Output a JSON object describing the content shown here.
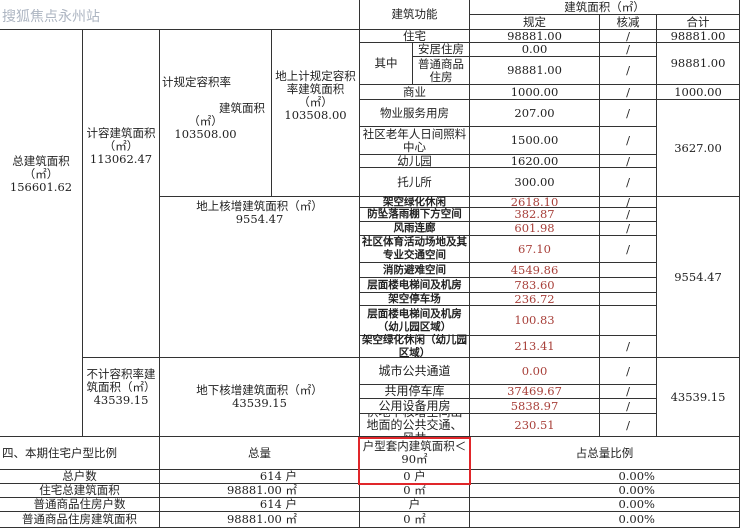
{
  "watermark": "搜狐焦点永州站",
  "header": {
    "function": "建筑功能",
    "area": "建筑面积（㎡）",
    "specified": "规定",
    "deduction": "核减",
    "total": "合计"
  },
  "left": {
    "total_area_label": "总建筑面积",
    "unit": "（㎡）",
    "total_area": "156601.62",
    "far_area_label": "计容建筑面积",
    "far_area": "113062.47",
    "spec_far_label": "计规定容积率",
    "spec_far_label2": "建筑面积",
    "spec_far": "103508.00",
    "above_spec_label": "地上计规定容积率建筑面积",
    "above_spec": "103508.00",
    "above_add_label": "地上核增建筑面积（㎡）",
    "above_add": "9554.47",
    "nonfar_label": "不计容积率建筑面积（㎡）",
    "nonfar": "43539.15",
    "under_add_label": "地下核增建筑面积（㎡）",
    "under_add": "43539.15"
  },
  "rows": {
    "residential": {
      "label": "住宅",
      "specified": "98881.00",
      "deduction": "/",
      "total": "98881.00"
    },
    "among": "其中",
    "affordable": {
      "label": "安居住房",
      "specified": "0.00",
      "deduction": "/"
    },
    "commodity": {
      "label": "普通商品住房",
      "specified": "98881.00",
      "deduction": "/"
    },
    "among_total": "98881.00",
    "commercial": {
      "label": "商业",
      "specified": "1000.00",
      "deduction": "/",
      "total": "1000.00"
    },
    "property": {
      "label": "物业服务用房",
      "specified": "207.00",
      "deduction": "/"
    },
    "elderly": {
      "label": "社区老年人日间照料中心",
      "specified": "1500.00",
      "deduction": "/"
    },
    "kindergarten": {
      "label": "幼儿园",
      "specified": "1620.00",
      "deduction": "/"
    },
    "nursery": {
      "label": "托儿所",
      "specified": "300.00",
      "deduction": "/"
    },
    "public_total": "3627.00"
  },
  "above_added": [
    {
      "label": "架空绿化休闲",
      "specified": "2618.10",
      "deduction": "/"
    },
    {
      "label": "防坠落雨棚下方空间",
      "specified": "382.87",
      "deduction": "/"
    },
    {
      "label": "风雨连廊",
      "specified": "601.98",
      "deduction": "/"
    },
    {
      "label": "社区体育活动场地及其专业交通空间",
      "specified": "67.10",
      "deduction": "/"
    },
    {
      "label": "消防避难空间",
      "specified": "4549.86",
      "deduction": ""
    },
    {
      "label": "层面楼电梯间及机房",
      "specified": "783.60",
      "deduction": ""
    },
    {
      "label": "架空停车场",
      "specified": "236.72",
      "deduction": ""
    },
    {
      "label": "层面楼电梯间及机房（幼儿园区域）",
      "specified": "100.83",
      "deduction": ""
    },
    {
      "label": "架空绿化休闲（幼儿园区域）",
      "specified": "213.41",
      "deduction": "/"
    }
  ],
  "above_added_total": "9554.47",
  "underground": [
    {
      "label": "城市公共通道",
      "specified": "0.00",
      "deduction": "/"
    },
    {
      "label": "共用停车库",
      "specified": "37469.67",
      "deduction": "/"
    },
    {
      "label": "公用设备用房",
      "specified": "5838.97",
      "deduction": "/"
    },
    {
      "label": "供地下核增空间出地面的公共交通、风井",
      "specified": "230.51",
      "deduction": "/"
    }
  ],
  "underground_total": "43539.15",
  "ratio": {
    "title": "四、本期住宅户型比例",
    "col_total": "总量",
    "col_small": "户型套内建筑面积＜90㎡",
    "col_pct": "占总量比例",
    "rows": [
      {
        "label": "总户数",
        "total": "614 户",
        "small": "0 户",
        "pct": "0.00%"
      },
      {
        "label": "住宅总建筑面积",
        "total": "98881.00 ㎡",
        "small": "0 ㎡",
        "pct": "0.00%"
      },
      {
        "label": "普通商品住房户数",
        "total": "614 户",
        "small": "户",
        "pct": "0.00%"
      },
      {
        "label": "普通商品住房建筑面积",
        "total": "98881.00 ㎡",
        "small": "0 ㎡",
        "pct": "0.00%"
      }
    ]
  },
  "colors": {
    "highlight": "#e0262a",
    "red_text": "#a8403a"
  }
}
